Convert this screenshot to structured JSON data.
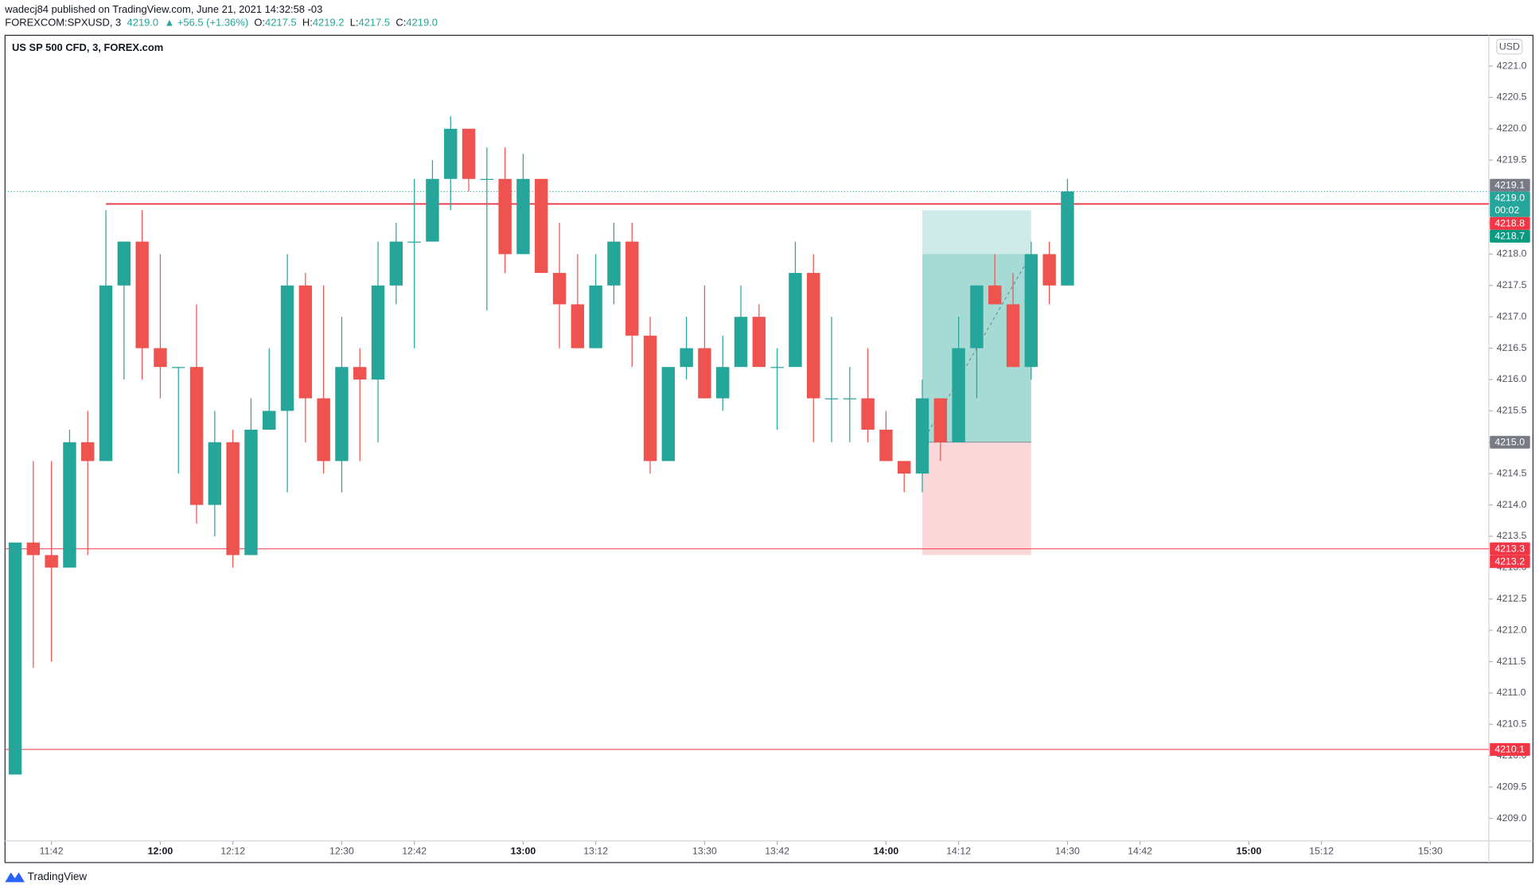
{
  "header": {
    "publisher": "wadecj84 published on TradingView.com, June 21, 2021 14:32:58 -03",
    "symbol": "FOREXCOM:SPXUSD, 3",
    "last": "4219.0",
    "change": "▲ +56.5 (+1.36%)",
    "ohlc": [
      {
        "label": "O:",
        "value": "4217.5"
      },
      {
        "label": "H:",
        "value": "4219.2"
      },
      {
        "label": "L:",
        "value": "4217.5"
      },
      {
        "label": "C:",
        "value": "4219.0"
      }
    ]
  },
  "chart_data": {
    "type": "candlestick",
    "title": "US SP 500 CFD, 3, FOREX.com",
    "currency": "USD",
    "x": [
      "11:36",
      "11:39",
      "11:42",
      "11:45",
      "11:48",
      "11:51",
      "11:54",
      "11:57",
      "12:00",
      "12:03",
      "12:06",
      "12:09",
      "12:12",
      "12:15",
      "12:18",
      "12:21",
      "12:24",
      "12:27",
      "12:30",
      "12:33",
      "12:36",
      "12:39",
      "12:42",
      "12:45",
      "12:48",
      "12:51",
      "12:54",
      "12:57",
      "13:00",
      "13:03",
      "13:06",
      "13:09",
      "13:12",
      "13:15",
      "13:18",
      "13:21",
      "13:24",
      "13:27",
      "13:30",
      "13:33",
      "13:36",
      "13:39",
      "13:42",
      "13:45",
      "13:48",
      "13:51",
      "13:54",
      "13:57",
      "14:00",
      "14:03",
      "14:06",
      "14:09",
      "14:12",
      "14:15",
      "14:18",
      "14:21",
      "14:24",
      "14:27",
      "14:30"
    ],
    "open": [
      4209.7,
      4213.4,
      4213.2,
      4213.0,
      4215.0,
      4214.7,
      4217.5,
      4218.2,
      4216.5,
      4216.2,
      4216.2,
      4214.0,
      4215.0,
      4213.2,
      4215.2,
      4215.5,
      4217.5,
      4215.7,
      4214.7,
      4216.2,
      4216.0,
      4217.5,
      4218.2,
      4218.2,
      4219.2,
      4220.0,
      4219.2,
      4219.2,
      4218.0,
      4219.2,
      4217.7,
      4217.2,
      4216.5,
      4217.5,
      4218.2,
      4216.7,
      4214.7,
      4216.2,
      4216.5,
      4215.7,
      4216.2,
      4217.0,
      4216.2,
      4216.2,
      4217.7,
      4215.7,
      4215.7,
      4215.7,
      4215.2,
      4214.7,
      4214.5,
      4215.7,
      4215.0,
      4216.5,
      4217.5,
      4217.2,
      4216.2,
      4218.0,
      4217.5
    ],
    "high": [
      4213.4,
      4214.7,
      4214.7,
      4215.2,
      4215.5,
      4218.7,
      4218.2,
      4218.7,
      4218.0,
      4216.2,
      4217.2,
      4215.5,
      4215.2,
      4215.7,
      4216.5,
      4218.0,
      4217.7,
      4217.5,
      4217.0,
      4216.5,
      4218.2,
      4218.5,
      4219.2,
      4219.5,
      4220.2,
      4220.0,
      4219.7,
      4219.7,
      4219.6,
      4219.2,
      4218.5,
      4218.0,
      4218.0,
      4218.5,
      4218.5,
      4217.0,
      4216.2,
      4217.0,
      4217.5,
      4216.7,
      4217.5,
      4217.2,
      4216.5,
      4218.2,
      4218.0,
      4217.0,
      4216.2,
      4216.5,
      4215.5,
      4214.7,
      4216.0,
      4215.7,
      4217.0,
      4217.5,
      4218.0,
      4217.7,
      4218.2,
      4218.2,
      4219.2
    ],
    "low": [
      4209.7,
      4211.4,
      4211.5,
      4213.0,
      4213.2,
      4214.7,
      4216.0,
      4216.0,
      4215.7,
      4214.5,
      4213.7,
      4213.5,
      4213.0,
      4213.2,
      4215.2,
      4214.2,
      4215.0,
      4214.5,
      4214.2,
      4214.7,
      4215.0,
      4217.2,
      4216.5,
      4218.2,
      4218.7,
      4219.0,
      4217.1,
      4217.7,
      4218.0,
      4217.7,
      4216.5,
      4216.5,
      4216.5,
      4217.2,
      4216.2,
      4214.5,
      4214.7,
      4216.0,
      4215.7,
      4215.5,
      4216.2,
      4216.2,
      4215.2,
      4216.2,
      4215.0,
      4215.0,
      4215.0,
      4215.0,
      4214.7,
      4214.2,
      4214.2,
      4214.7,
      4215.0,
      4215.7,
      4217.2,
      4216.2,
      4216.0,
      4217.2,
      4217.5
    ],
    "close": [
      4213.4,
      4213.2,
      4213.0,
      4215.0,
      4214.7,
      4217.5,
      4218.2,
      4216.5,
      4216.2,
      4216.2,
      4214.0,
      4215.0,
      4213.2,
      4215.2,
      4215.5,
      4217.5,
      4215.7,
      4214.7,
      4216.2,
      4216.0,
      4217.5,
      4218.2,
      4218.2,
      4219.2,
      4220.0,
      4219.2,
      4219.2,
      4218.0,
      4219.2,
      4217.7,
      4217.2,
      4216.5,
      4217.5,
      4218.2,
      4216.7,
      4214.7,
      4216.2,
      4216.5,
      4215.7,
      4216.2,
      4217.0,
      4216.2,
      4216.2,
      4217.7,
      4215.7,
      4215.7,
      4215.7,
      4215.2,
      4214.7,
      4214.5,
      4215.7,
      4215.0,
      4216.5,
      4217.5,
      4217.2,
      4216.2,
      4218.0,
      4217.5,
      4219.0
    ],
    "up_color": "#26a69a",
    "down_color": "#ef5350",
    "xlim": [
      "11:34",
      "15:40"
    ],
    "xticks": [
      "11:42",
      "12:00",
      "12:12",
      "12:30",
      "12:42",
      "13:00",
      "13:12",
      "13:30",
      "13:42",
      "14:00",
      "14:12",
      "14:30",
      "14:42",
      "15:00",
      "15:12",
      "15:30"
    ],
    "ylim": [
      4208.64,
      4221.49
    ],
    "yticks": [
      {
        "value": 4209,
        "label": "4209.0"
      },
      {
        "value": 4209.5,
        "label": "4209.5"
      },
      {
        "value": 4210,
        "label": "4210.0"
      },
      {
        "value": 4210.5,
        "label": "4210.5"
      },
      {
        "value": 4211,
        "label": "4211.0"
      },
      {
        "value": 4211.5,
        "label": "4211.5"
      },
      {
        "value": 4212,
        "label": "4212.0"
      },
      {
        "value": 4212.5,
        "label": "4212.5"
      },
      {
        "value": 4213,
        "label": "4213.0"
      },
      {
        "value": 4213.5,
        "label": "4213.5"
      },
      {
        "value": 4214,
        "label": "4214.0"
      },
      {
        "value": 4214.5,
        "label": "4214.5"
      },
      {
        "value": 4215,
        "label": "4215.0"
      },
      {
        "value": 4215.5,
        "label": "4215.5"
      },
      {
        "value": 4216,
        "label": "4216.0"
      },
      {
        "value": 4216.5,
        "label": "4216.5"
      },
      {
        "value": 4217,
        "label": "4217.0"
      },
      {
        "value": 4217.5,
        "label": "4217.5"
      },
      {
        "value": 4218,
        "label": "4218.0"
      },
      {
        "value": 4218.5,
        "label": "4218.5"
      },
      {
        "value": 4219,
        "label": "4219.0"
      },
      {
        "value": 4219.5,
        "label": "4219.5"
      },
      {
        "value": 4220,
        "label": "4220.0"
      },
      {
        "value": 4220.5,
        "label": "4220.5"
      },
      {
        "value": 4221,
        "label": "4221.0"
      }
    ],
    "levels": [
      {
        "value": 4218.8,
        "color": "#f23645",
        "start": "11:51"
      },
      {
        "value": 4213.3,
        "color": "#f23645"
      },
      {
        "value": 4210.1,
        "color": "#f23645"
      }
    ],
    "price_labels": [
      {
        "value": 4219.1,
        "label": "4219.1",
        "color": "#787b86"
      },
      {
        "value": 4219.0,
        "label": "4219.0",
        "color": "#26a69a",
        "countdown": "00:02"
      },
      {
        "value": 4218.8,
        "label": "4218.8",
        "color": "#f23645"
      },
      {
        "value": 4218.7,
        "label": "4218.7",
        "color": "#089981"
      },
      {
        "value": 4215.0,
        "label": "4215.0",
        "color": "#787b86"
      },
      {
        "value": 4213.3,
        "label": "4213.3",
        "color": "#f23645"
      },
      {
        "value": 4213.2,
        "label": "4213.2",
        "color": "#f23645"
      },
      {
        "value": 4210.1,
        "label": "4210.1",
        "color": "#f23645"
      }
    ],
    "position": {
      "start": "14:06",
      "end": "14:24",
      "entry": 4215.0,
      "target": 4218.7,
      "stop": 4213.2,
      "reached": 4218.0
    }
  },
  "footer": {
    "brand": "TradingView"
  }
}
